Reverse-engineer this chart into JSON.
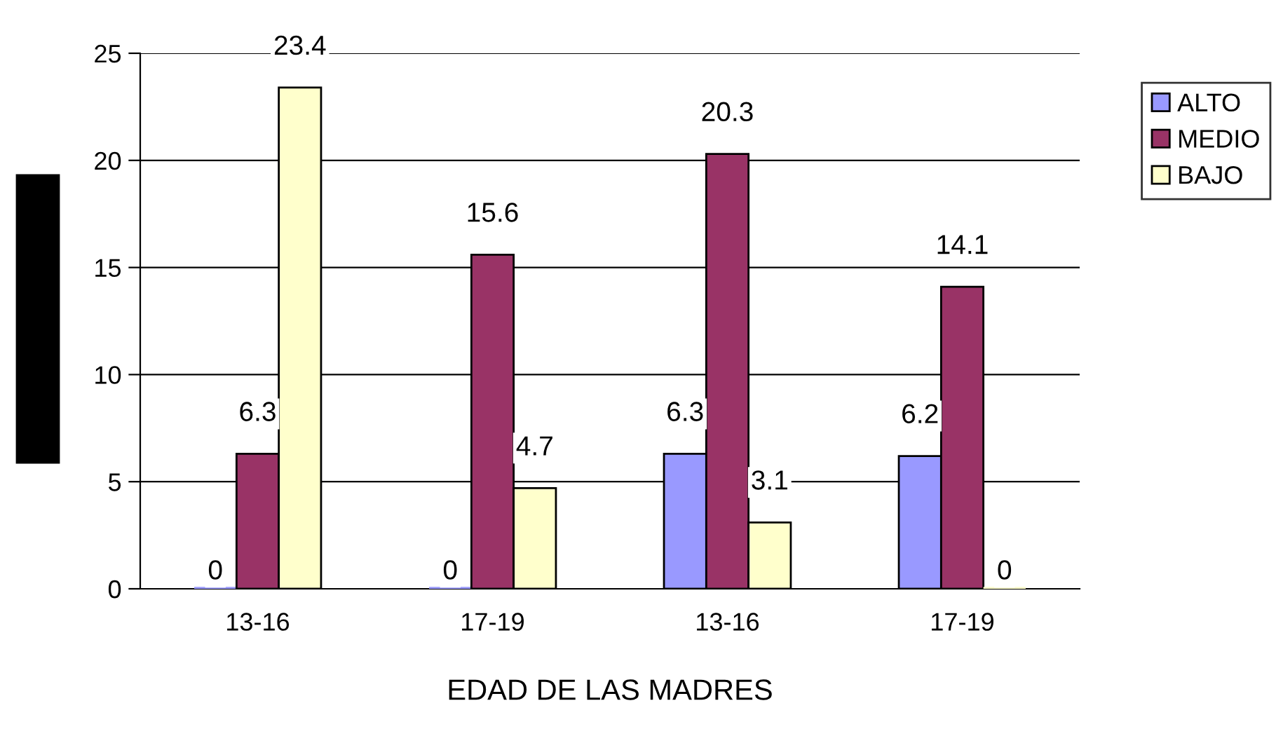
{
  "chart_data": {
    "type": "bar",
    "xlabel": "EDAD DE LAS MADRES",
    "categories": [
      "13-16",
      "17-19",
      "13-16",
      "17-19"
    ],
    "series": [
      {
        "name": "ALTO",
        "color": "#9999ff",
        "values": [
          0,
          0,
          6.3,
          6.2
        ]
      },
      {
        "name": "MEDIO",
        "color": "#993366",
        "values": [
          6.3,
          15.6,
          20.3,
          14.1
        ]
      },
      {
        "name": "BAJO",
        "color": "#ffffcc",
        "values": [
          23.4,
          4.7,
          3.1,
          0
        ]
      }
    ],
    "ylim": [
      0,
      25
    ],
    "yticks": [
      0,
      5,
      10,
      15,
      20,
      25
    ],
    "grid": "y",
    "legend": "top right",
    "data_labels": true
  }
}
